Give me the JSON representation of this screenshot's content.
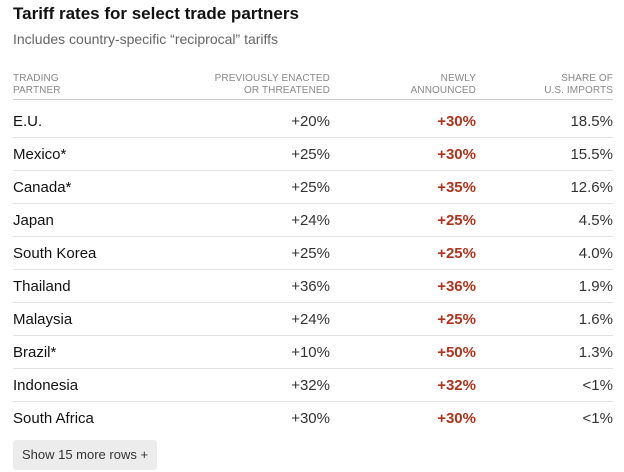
{
  "title": "Tariff rates for select trade partners",
  "subtitle": "Includes country-specific “reciprocal” tariffs",
  "columns": [
    {
      "line1": "TRADING",
      "line2": "PARTNER"
    },
    {
      "line1": "PREVIOUSLY ENACTED",
      "line2": "OR THREATENED"
    },
    {
      "line1": "NEWLY",
      "line2": "ANNOUNCED"
    },
    {
      "line1": "SHARE OF",
      "line2": "U.S. IMPORTS"
    }
  ],
  "rows": [
    {
      "partner": "E.U.",
      "previous": "+20%",
      "new": "+30%",
      "share": "18.5%"
    },
    {
      "partner": "Mexico*",
      "previous": "+25%",
      "new": "+30%",
      "share": "15.5%"
    },
    {
      "partner": "Canada*",
      "previous": "+25%",
      "new": "+35%",
      "share": "12.6%"
    },
    {
      "partner": "Japan",
      "previous": "+24%",
      "new": "+25%",
      "share": "4.5%"
    },
    {
      "partner": "South Korea",
      "previous": "+25%",
      "new": "+25%",
      "share": "4.0%"
    },
    {
      "partner": "Thailand",
      "previous": "+36%",
      "new": "+36%",
      "share": "1.9%"
    },
    {
      "partner": "Malaysia",
      "previous": "+24%",
      "new": "+25%",
      "share": "1.6%"
    },
    {
      "partner": "Brazil*",
      "previous": "+10%",
      "new": "+50%",
      "share": "1.3%"
    },
    {
      "partner": "Indonesia",
      "previous": "+32%",
      "new": "+32%",
      "share": "<1%"
    },
    {
      "partner": "South Africa",
      "previous": "+30%",
      "new": "+30%",
      "share": "<1%"
    }
  ],
  "show_more_label": "Show 15 more rows +",
  "colors": {
    "newly_announced": "#b3321b",
    "text": "#121212",
    "muted": "#888888"
  }
}
